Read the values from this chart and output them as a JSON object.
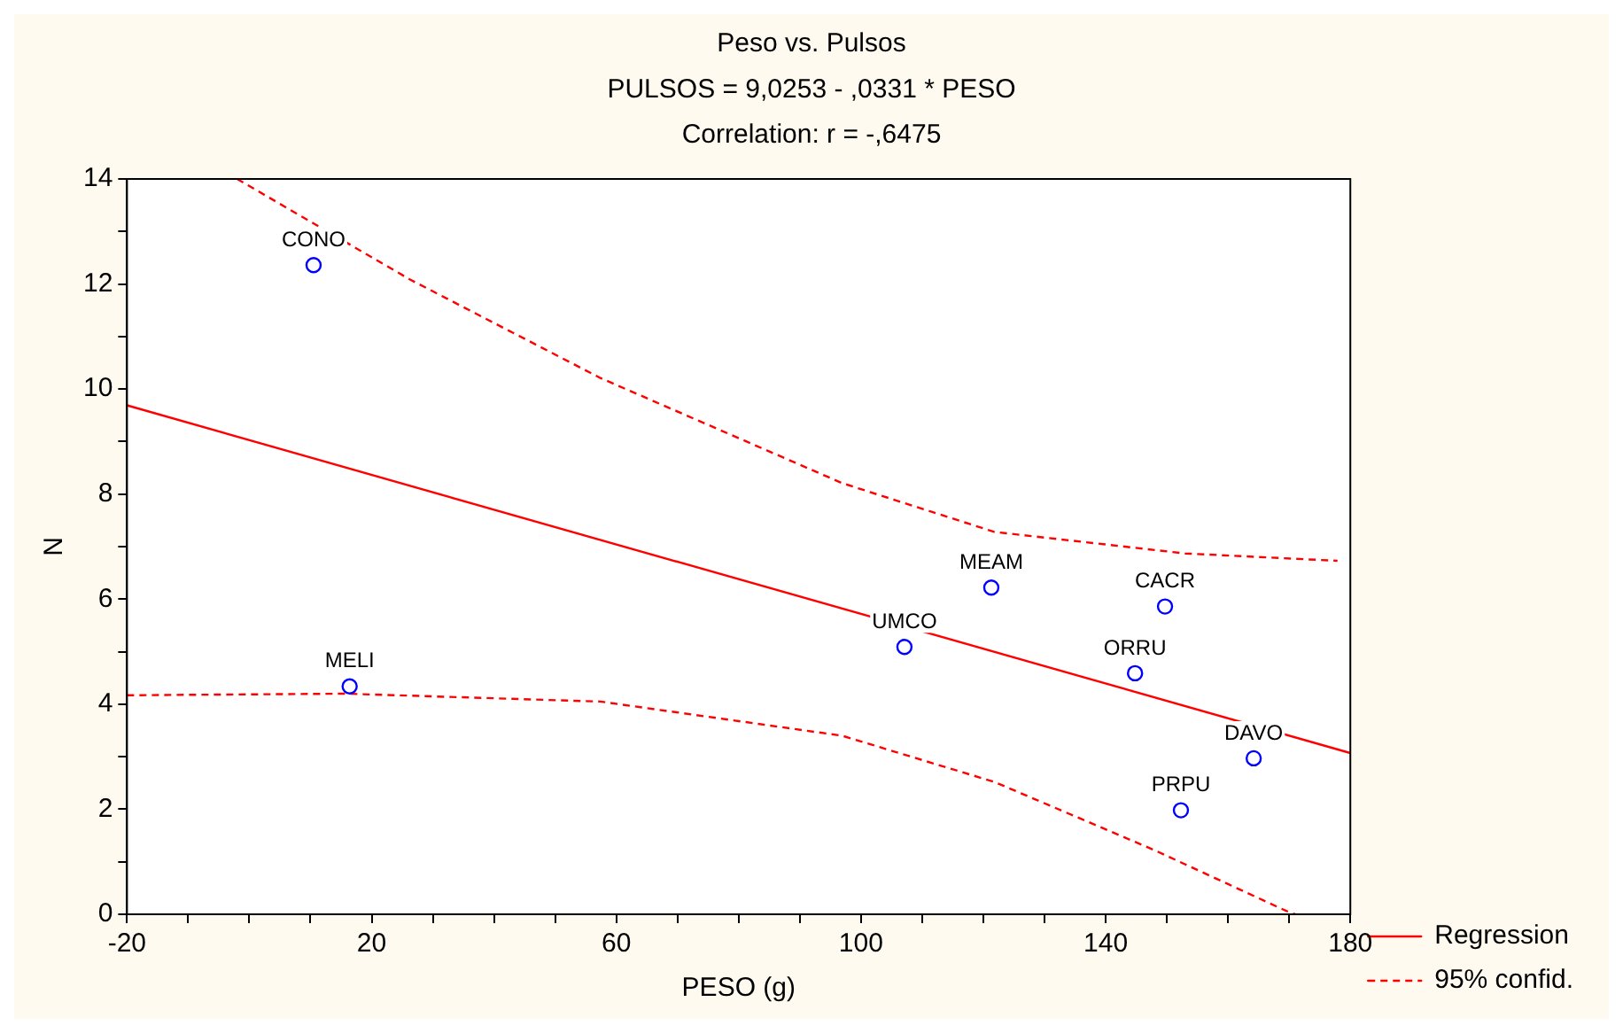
{
  "chart_data": {
    "type": "scatter",
    "title": "Peso vs. Pulsos",
    "subtitle": "PULSOS = 9,0253 - ,0331 * PESO\nCorrelation: r = -,6475",
    "xlabel": "PESO (g)",
    "ylabel": "N",
    "series": [
      {
        "type": "scatter",
        "color": "#0000ff",
        "marker": "circle",
        "x": [
          10.5,
          16.4,
          107.1,
          121.3,
          149.7,
          144.8,
          164.2,
          152.3
        ],
        "values": [
          12.36,
          4.34,
          5.09,
          6.22,
          5.86,
          4.59,
          2.97,
          1.98
        ]
      },
      {
        "type": "line",
        "name": "Regression",
        "color": "#ff0000",
        "marker": "none",
        "line_style": "solid",
        "x": [
          -20,
          180
        ],
        "values": [
          9.69,
          3.07
        ]
      },
      {
        "type": "line",
        "name": "95% confid.",
        "color": "#ff0000",
        "marker": "none",
        "line_style": "dashed",
        "x": [
          -2,
          26.2,
          57.4,
          96.9,
          121.8,
          153,
          177.9
        ],
        "values": [
          14,
          12.09,
          10.21,
          8.21,
          7.28,
          6.87,
          6.73
        ]
      },
      {
        "type": "line",
        "color": "#ff0000",
        "marker": "none",
        "line_style": "dashed",
        "x": [
          -20,
          15.8,
          57.4,
          96.9,
          121.8,
          147.8,
          169.6,
          171
        ],
        "values": [
          4.17,
          4.2,
          4.05,
          3.4,
          2.52,
          1.23,
          0.06,
          0
        ]
      }
    ],
    "annotations": [
      {
        "text": "CONO",
        "x": 10.5,
        "y": 12.36
      },
      {
        "text": "MELI",
        "x": 16.4,
        "y": 4.34
      },
      {
        "text": "UMCO",
        "x": 107.1,
        "y": 5.09
      },
      {
        "text": "MEAM",
        "x": 121.3,
        "y": 6.22
      },
      {
        "text": "CACR",
        "x": 149.7,
        "y": 5.86
      },
      {
        "text": "ORRU",
        "x": 144.8,
        "y": 4.59
      },
      {
        "text": "DAVO",
        "x": 164.2,
        "y": 2.97
      },
      {
        "text": "PRPU",
        "x": 152.3,
        "y": 1.98
      }
    ],
    "xlim": [
      -20,
      180
    ],
    "ylim": [
      0,
      14
    ],
    "xticks": [
      -20,
      {
        "value": -10,
        "label": null
      },
      {
        "value": 0,
        "label": null
      },
      {
        "value": 10,
        "label": null
      },
      20,
      {
        "value": 30,
        "label": null
      },
      {
        "value": 40,
        "label": null
      },
      {
        "value": 50,
        "label": null
      },
      60,
      {
        "value": 70,
        "label": null
      },
      {
        "value": 80,
        "label": null
      },
      {
        "value": 90,
        "label": null
      },
      100,
      {
        "value": 110,
        "label": null
      },
      {
        "value": 120,
        "label": null
      },
      {
        "value": 130,
        "label": null
      },
      140,
      {
        "value": 150,
        "label": null
      },
      {
        "value": 160,
        "label": null
      },
      {
        "value": 170,
        "label": null
      },
      180
    ],
    "yticks": [
      0,
      {
        "value": 1,
        "label": null
      },
      2,
      {
        "value": 3,
        "label": null
      },
      4,
      {
        "value": 5,
        "label": null
      },
      6,
      {
        "value": 7,
        "label": null
      },
      8,
      {
        "value": 9,
        "label": null
      },
      10,
      {
        "value": 11,
        "label": null
      },
      12,
      {
        "value": 13,
        "label": null
      },
      14
    ],
    "grid": false,
    "legend": "bottom right"
  }
}
